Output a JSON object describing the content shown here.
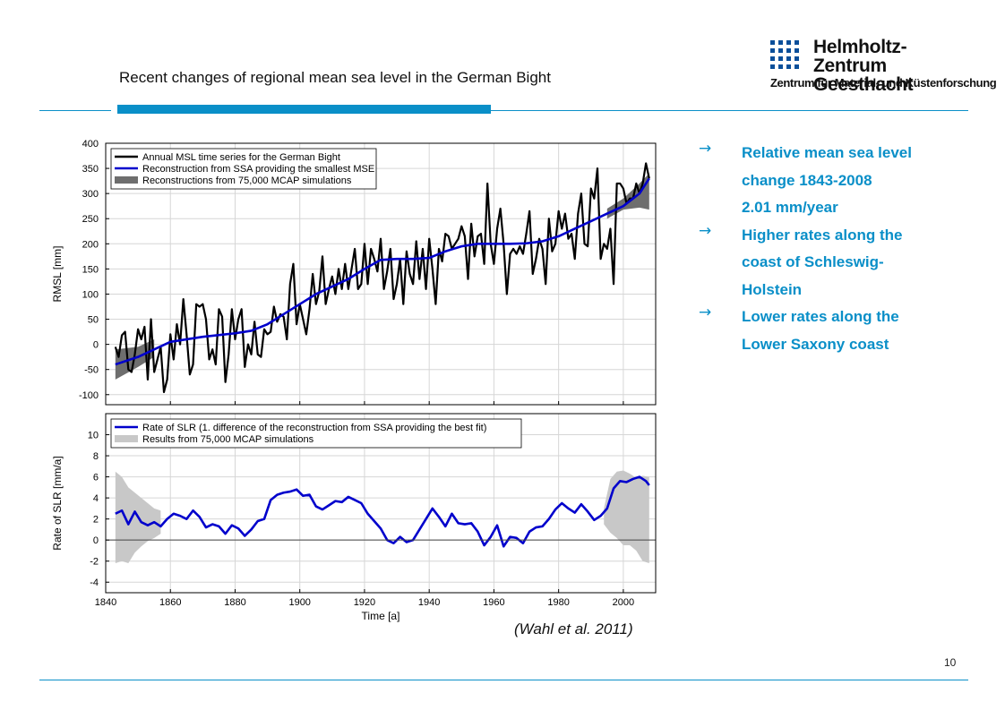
{
  "slide": {
    "title": "Recent changes of regional mean sea level in the German Bight",
    "citation": "(Wahl et al. 2011)",
    "page_number": "10"
  },
  "logo": {
    "name_line1": "Helmholtz-Zentrum",
    "name_line2": "Geesthacht",
    "subtitle": "Zentrum für Material- und Küstenforschung"
  },
  "bullets": [
    {
      "icon": "arrow-right-icon",
      "lines": [
        "Relative mean sea level",
        "change 1843-2008",
        "2.01 mm/year"
      ]
    },
    {
      "icon": "arrow-right-icon",
      "lines": [
        "Higher rates along the",
        "coast of Schleswig-",
        "Holstein"
      ]
    },
    {
      "icon": "arrow-right-icon",
      "lines": [
        "Lower rates along the",
        "Lower Saxony coast"
      ]
    }
  ],
  "colors": {
    "accent": "#0a8fc8",
    "msl_line": "#000000",
    "reconstruction": "#0000cc",
    "mcap_band_top": "#666666",
    "mcap_band_bottom": "#cccccc"
  },
  "chart_data": [
    {
      "type": "line",
      "ylabel": "RMSL [mm]",
      "xlim": [
        1840,
        2010
      ],
      "ylim": [
        -120,
        400
      ],
      "yticks": [
        -100,
        -50,
        0,
        50,
        100,
        150,
        200,
        250,
        300,
        350,
        400
      ],
      "grid": true,
      "legend": "top-left",
      "series": [
        {
          "name": "Annual MSL time series for the German Bight",
          "x": [
            1843,
            1844,
            1845,
            1846,
            1847,
            1848,
            1849,
            1850,
            1851,
            1852,
            1853,
            1854,
            1855,
            1856,
            1857,
            1858,
            1859,
            1860,
            1861,
            1862,
            1863,
            1864,
            1865,
            1866,
            1867,
            1868,
            1869,
            1870,
            1871,
            1872,
            1873,
            1874,
            1875,
            1876,
            1877,
            1878,
            1879,
            1880,
            1881,
            1882,
            1883,
            1884,
            1885,
            1886,
            1887,
            1888,
            1889,
            1890,
            1891,
            1892,
            1893,
            1894,
            1895,
            1896,
            1897,
            1898,
            1899,
            1900,
            1901,
            1902,
            1903,
            1904,
            1905,
            1906,
            1907,
            1908,
            1909,
            1910,
            1911,
            1912,
            1913,
            1914,
            1915,
            1916,
            1917,
            1918,
            1919,
            1920,
            1921,
            1922,
            1923,
            1924,
            1925,
            1926,
            1927,
            1928,
            1929,
            1930,
            1931,
            1932,
            1933,
            1934,
            1935,
            1936,
            1937,
            1938,
            1939,
            1940,
            1941,
            1942,
            1943,
            1944,
            1945,
            1946,
            1947,
            1948,
            1949,
            1950,
            1951,
            1952,
            1953,
            1954,
            1955,
            1956,
            1957,
            1958,
            1959,
            1960,
            1961,
            1962,
            1963,
            1964,
            1965,
            1966,
            1967,
            1968,
            1969,
            1970,
            1971,
            1972,
            1973,
            1974,
            1975,
            1976,
            1977,
            1978,
            1979,
            1980,
            1981,
            1982,
            1983,
            1984,
            1985,
            1986,
            1987,
            1988,
            1989,
            1990,
            1991,
            1992,
            1993,
            1994,
            1995,
            1996,
            1997,
            1998,
            1999,
            2000,
            2001,
            2002,
            2003,
            2004,
            2005,
            2006,
            2007,
            2008
          ],
          "y": [
            -5,
            -25,
            18,
            25,
            -50,
            -55,
            -20,
            30,
            10,
            35,
            -70,
            50,
            -55,
            -30,
            -5,
            -95,
            -70,
            20,
            -30,
            40,
            0,
            90,
            20,
            -60,
            -40,
            80,
            75,
            80,
            50,
            -30,
            -10,
            -40,
            70,
            55,
            -75,
            -20,
            70,
            10,
            50,
            70,
            -45,
            0,
            -20,
            45,
            -20,
            -25,
            30,
            20,
            25,
            75,
            45,
            60,
            55,
            10,
            120,
            160,
            40,
            80,
            50,
            20,
            70,
            140,
            80,
            105,
            175,
            80,
            110,
            135,
            100,
            150,
            110,
            160,
            110,
            150,
            190,
            110,
            120,
            200,
            120,
            190,
            170,
            145,
            210,
            110,
            145,
            190,
            90,
            120,
            170,
            80,
            185,
            140,
            120,
            205,
            130,
            190,
            110,
            210,
            150,
            80,
            190,
            165,
            220,
            215,
            190,
            200,
            210,
            235,
            215,
            130,
            240,
            175,
            215,
            220,
            160,
            320,
            200,
            160,
            230,
            270,
            200,
            100,
            180,
            190,
            180,
            195,
            180,
            220,
            265,
            140,
            170,
            210,
            190,
            120,
            250,
            185,
            200,
            265,
            230,
            260,
            210,
            220,
            170,
            260,
            300,
            200,
            195,
            310,
            290,
            350,
            170,
            200,
            190,
            230,
            120,
            320,
            320,
            310,
            280,
            290,
            290,
            320,
            300,
            320,
            360,
            330
          ]
        },
        {
          "name": "Reconstruction from SSA providing the smallest MSE",
          "x": [
            1843,
            1850,
            1860,
            1870,
            1880,
            1885,
            1890,
            1895,
            1900,
            1905,
            1910,
            1915,
            1920,
            1925,
            1930,
            1935,
            1940,
            1945,
            1950,
            1955,
            1960,
            1965,
            1970,
            1975,
            1980,
            1985,
            1990,
            1995,
            2000,
            2005,
            2008
          ],
          "y": [
            -40,
            -25,
            5,
            15,
            22,
            27,
            40,
            60,
            80,
            100,
            115,
            130,
            150,
            168,
            170,
            170,
            172,
            185,
            195,
            200,
            200,
            200,
            201,
            205,
            215,
            230,
            245,
            260,
            275,
            300,
            330
          ]
        },
        {
          "name": "Reconstructions from 75,000 MCAP simulations",
          "x": [
            1843,
            1850,
            1855,
            1995,
            2000,
            2005,
            2008
          ],
          "y_low": [
            -70,
            -45,
            -25,
            250,
            268,
            272,
            268
          ],
          "y_high": [
            -10,
            -5,
            10,
            270,
            290,
            320,
            340
          ]
        }
      ]
    },
    {
      "type": "line",
      "xlabel": "Time [a]",
      "ylabel": "Rate of SLR [mm/a]",
      "xlim": [
        1840,
        2010
      ],
      "ylim": [
        -5,
        12
      ],
      "xticks": [
        1840,
        1860,
        1880,
        1900,
        1920,
        1940,
        1960,
        1980,
        2000
      ],
      "yticks": [
        -4,
        -2,
        0,
        2,
        4,
        6,
        8,
        10
      ],
      "grid": true,
      "legend": "top-left",
      "series": [
        {
          "name": "Rate of SLR (1. difference of the reconstruction from SSA providing the best fit)",
          "x": [
            1843,
            1845,
            1847,
            1849,
            1851,
            1853,
            1855,
            1857,
            1859,
            1861,
            1863,
            1865,
            1867,
            1869,
            1871,
            1873,
            1875,
            1877,
            1879,
            1881,
            1883,
            1885,
            1887,
            1889,
            1891,
            1893,
            1895,
            1897,
            1899,
            1901,
            1903,
            1905,
            1907,
            1909,
            1911,
            1913,
            1915,
            1917,
            1919,
            1921,
            1923,
            1925,
            1927,
            1929,
            1931,
            1933,
            1935,
            1937,
            1939,
            1941,
            1943,
            1945,
            1947,
            1949,
            1951,
            1953,
            1955,
            1957,
            1959,
            1961,
            1963,
            1965,
            1967,
            1969,
            1971,
            1973,
            1975,
            1977,
            1979,
            1981,
            1983,
            1985,
            1987,
            1989,
            1991,
            1993,
            1995,
            1997,
            1999,
            2001,
            2003,
            2005,
            2007,
            2008
          ],
          "y": [
            2.5,
            2.8,
            1.5,
            2.7,
            1.7,
            1.4,
            1.7,
            1.3,
            2.0,
            2.5,
            2.3,
            2.0,
            2.8,
            2.2,
            1.2,
            1.5,
            1.3,
            0.6,
            1.4,
            1.1,
            0.4,
            1.0,
            1.8,
            2.0,
            3.8,
            4.3,
            4.5,
            4.6,
            4.8,
            4.2,
            4.3,
            3.2,
            2.9,
            3.3,
            3.7,
            3.6,
            4.1,
            3.8,
            3.5,
            2.5,
            1.8,
            1.1,
            0.0,
            -0.3,
            0.3,
            -0.2,
            0.0,
            1.0,
            2.0,
            3.0,
            2.2,
            1.3,
            2.5,
            1.6,
            1.5,
            1.6,
            0.8,
            -0.5,
            0.3,
            1.4,
            -0.6,
            0.3,
            0.2,
            -0.3,
            0.8,
            1.2,
            1.3,
            2.0,
            2.9,
            3.5,
            3.0,
            2.6,
            3.4,
            2.7,
            1.9,
            2.3,
            3.0,
            4.9,
            5.6,
            5.5,
            5.8,
            6.0,
            5.6,
            5.2
          ]
        },
        {
          "name": "Results from 75,000 MCAP simulations",
          "x": [
            1843,
            1845,
            1847,
            1849,
            1851,
            1853,
            1855,
            1857,
            1994,
            1996,
            1998,
            2000,
            2002,
            2004,
            2006,
            2008
          ],
          "y_low": [
            -2.2,
            -2.0,
            -2.2,
            -1.2,
            -0.6,
            -0.1,
            0.2,
            0.6,
            1.5,
            0.7,
            0.2,
            -0.5,
            -0.5,
            -1.0,
            -2.0,
            -2.2
          ],
          "y_high": [
            6.5,
            6.0,
            5.0,
            4.5,
            4.0,
            3.5,
            3.0,
            2.8,
            3.0,
            5.8,
            6.5,
            6.6,
            6.3,
            5.9,
            6.1,
            6.0
          ]
        }
      ]
    }
  ]
}
